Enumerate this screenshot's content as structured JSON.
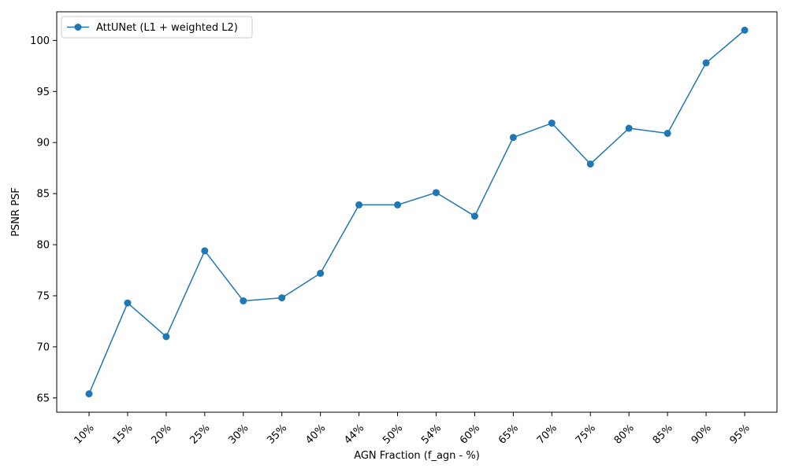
{
  "chart_data": {
    "type": "line",
    "xlabel": "AGN Fraction (f_agn - %)",
    "ylabel": "PSNR PSF",
    "categories": [
      "10%",
      "15%",
      "20%",
      "25%",
      "30%",
      "35%",
      "40%",
      "44%",
      "50%",
      "54%",
      "60%",
      "65%",
      "70%",
      "75%",
      "80%",
      "85%",
      "90%",
      "95%"
    ],
    "series": [
      {
        "name": "AttUNet (L1 + weighted L2)",
        "values": [
          65.4,
          74.3,
          71.0,
          79.4,
          74.5,
          74.8,
          77.2,
          83.9,
          83.9,
          85.1,
          82.8,
          90.5,
          91.9,
          87.9,
          91.4,
          90.9,
          97.8,
          101.0
        ],
        "color": "#1f77b4",
        "marker": "circle"
      }
    ],
    "yticks": [
      65,
      70,
      75,
      80,
      85,
      90,
      95,
      100
    ],
    "ylim": [
      63.6,
      102.8
    ],
    "grid": false,
    "legend": "top-left"
  }
}
